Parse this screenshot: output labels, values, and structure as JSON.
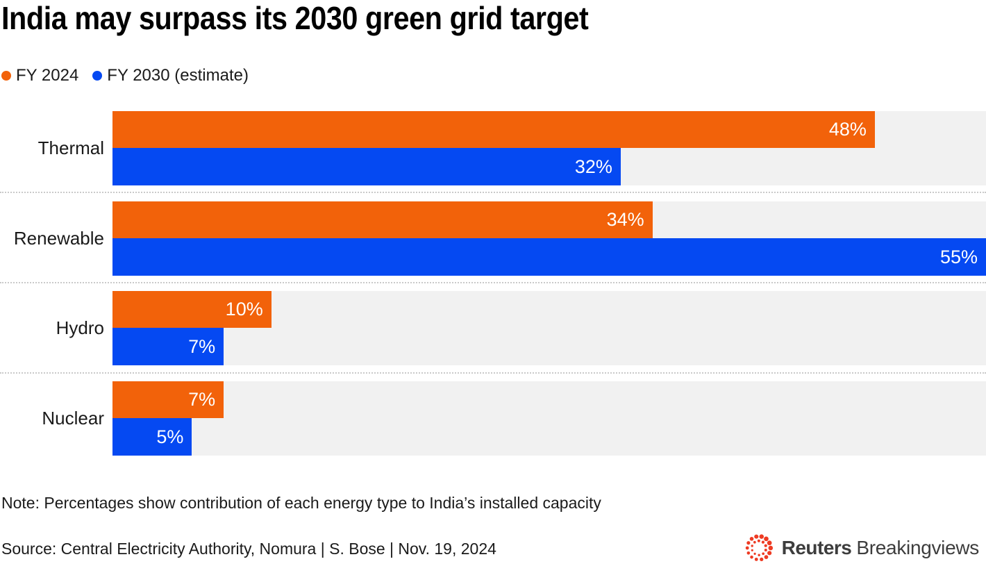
{
  "title": "India may surpass its 2030 green grid target",
  "note": "Note: Percentages show contribution of each energy type to India’s installed capacity",
  "source": "Source: Central Electricity Authority, Nomura | S. Bose | Nov. 19, 2024",
  "logo": {
    "brand": "Reuters",
    "suffix": "Breakingviews",
    "mark": "reuters-dotted-circle",
    "mark_color": "#ee3b23",
    "text_color": "#3d3d3d"
  },
  "chart_data": {
    "type": "bar",
    "orientation": "horizontal",
    "title": "India may surpass its 2030 green grid target",
    "xlabel": "",
    "ylabel": "",
    "xmax": 55,
    "grid": false,
    "legend_position": "top-left",
    "row_background": "#f1f1f1",
    "categories": [
      "Thermal",
      "Renewable",
      "Hydro",
      "Nuclear"
    ],
    "series": [
      {
        "name": "FY 2024",
        "color": "#f2620a",
        "values": [
          48,
          34,
          10,
          7
        ],
        "labels": [
          "48%",
          "34%",
          "10%",
          "7%"
        ]
      },
      {
        "name": "FY 2030 (estimate)",
        "color": "#0549f2",
        "values": [
          32,
          55,
          7,
          5
        ],
        "labels": [
          "32%",
          "55%",
          "7%",
          "5%"
        ]
      }
    ]
  }
}
